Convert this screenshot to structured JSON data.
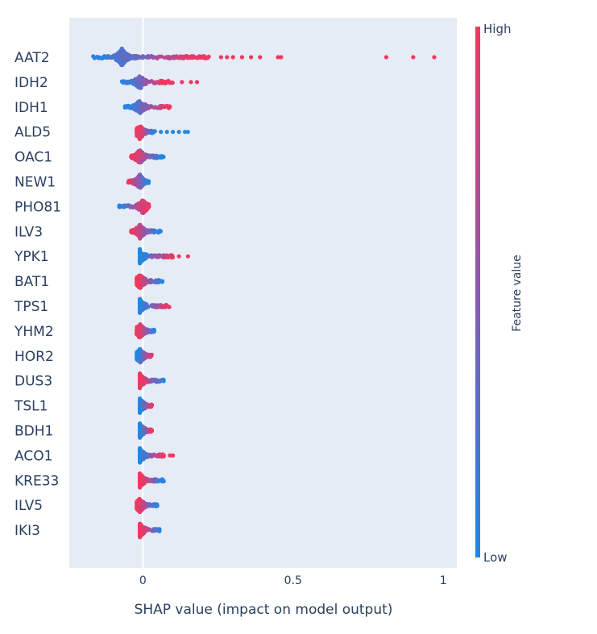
{
  "chart_data": {
    "type": "scatter",
    "xlabel": "SHAP value (impact on model output)",
    "x_ticks": [
      0,
      0.5,
      1
    ],
    "x_tick_labels": [
      "0",
      "0.5",
      "1"
    ],
    "xlim": [
      -0.245,
      1.045
    ],
    "features": [
      "AAT2",
      "IDH2",
      "IDH1",
      "ALD5",
      "OAC1",
      "NEW1",
      "PHO81",
      "ILV3",
      "YPK1",
      "BAT1",
      "TPS1",
      "YHM2",
      "HOR2",
      "DUS3",
      "TSL1",
      "BDH1",
      "ACO1",
      "KRE33",
      "ILV5",
      "IKI3"
    ],
    "colorbar": {
      "title": "Feature value",
      "high_label": "High",
      "low_label": "Low",
      "high_color": "#f2375f",
      "mid_color": "#8a5bb0",
      "low_color": "#1e88e5"
    },
    "colors": {
      "plot_bg": "#e5ecf6",
      "zero_line": "#ffffff",
      "text": "#2a3f5f"
    },
    "feature_shap": [
      {
        "name": "AAT2",
        "center": -0.07,
        "min": -0.17,
        "max": 0.22,
        "outliers_high": [
          0.26,
          0.28,
          0.3,
          0.33,
          0.36,
          0.39,
          0.45,
          0.46,
          0.81,
          0.9,
          0.97
        ],
        "high_side": "right"
      },
      {
        "name": "IDH2",
        "center": -0.01,
        "min": -0.07,
        "max": 0.1,
        "outliers_high": [
          0.13,
          0.16,
          0.18
        ],
        "high_side": "right"
      },
      {
        "name": "IDH1",
        "center": -0.01,
        "min": -0.06,
        "max": 0.09,
        "outliers_high": [],
        "high_side": "right"
      },
      {
        "name": "ALD5",
        "center": -0.01,
        "min": -0.02,
        "max": 0.04,
        "outliers_low": [
          0.06,
          0.08,
          0.1,
          0.12,
          0.14,
          0.15
        ],
        "high_side": "left"
      },
      {
        "name": "OAC1",
        "center": -0.01,
        "min": -0.04,
        "max": 0.07,
        "outliers_low": [],
        "high_side": "left"
      },
      {
        "name": "NEW1",
        "center": -0.01,
        "min": -0.05,
        "max": 0.02,
        "outliers_low": [],
        "high_side": "left"
      },
      {
        "name": "PHO81",
        "center": 0.0,
        "min": -0.08,
        "max": 0.02,
        "outliers_low": [],
        "high_side": "right"
      },
      {
        "name": "ILV3",
        "center": -0.01,
        "min": -0.04,
        "max": 0.06,
        "outliers_low": [],
        "high_side": "left"
      },
      {
        "name": "YPK1",
        "center": -0.01,
        "min": -0.01,
        "max": 0.1,
        "outliers_high": [
          0.12,
          0.15
        ],
        "high_side": "right"
      },
      {
        "name": "BAT1",
        "center": -0.01,
        "min": -0.02,
        "max": 0.07,
        "outliers_low": [],
        "high_side": "left"
      },
      {
        "name": "TPS1",
        "center": -0.01,
        "min": -0.01,
        "max": 0.09,
        "outliers_high": [],
        "high_side": "right"
      },
      {
        "name": "YHM2",
        "center": -0.01,
        "min": -0.02,
        "max": 0.04,
        "outliers_low": [],
        "high_side": "left"
      },
      {
        "name": "HOR2",
        "center": -0.01,
        "min": -0.02,
        "max": 0.03,
        "outliers_high": [],
        "high_side": "right"
      },
      {
        "name": "DUS3",
        "center": -0.01,
        "min": -0.01,
        "max": 0.07,
        "outliers_low": [],
        "high_side": "left"
      },
      {
        "name": "TSL1",
        "center": -0.01,
        "min": -0.01,
        "max": 0.03,
        "outliers_high": [],
        "high_side": "right"
      },
      {
        "name": "BDH1",
        "center": -0.01,
        "min": -0.01,
        "max": 0.03,
        "outliers_high": [],
        "high_side": "right"
      },
      {
        "name": "ACO1",
        "center": -0.01,
        "min": -0.01,
        "max": 0.07,
        "outliers_high": [
          0.09,
          0.1
        ],
        "high_side": "right"
      },
      {
        "name": "KRE33",
        "center": -0.01,
        "min": -0.01,
        "max": 0.07,
        "outliers_low": [],
        "high_side": "left"
      },
      {
        "name": "ILV5",
        "center": -0.01,
        "min": -0.02,
        "max": 0.05,
        "outliers_low": [],
        "high_side": "left"
      },
      {
        "name": "IKI3",
        "center": -0.01,
        "min": -0.01,
        "max": 0.06,
        "outliers_low": [],
        "high_side": "left"
      }
    ]
  }
}
